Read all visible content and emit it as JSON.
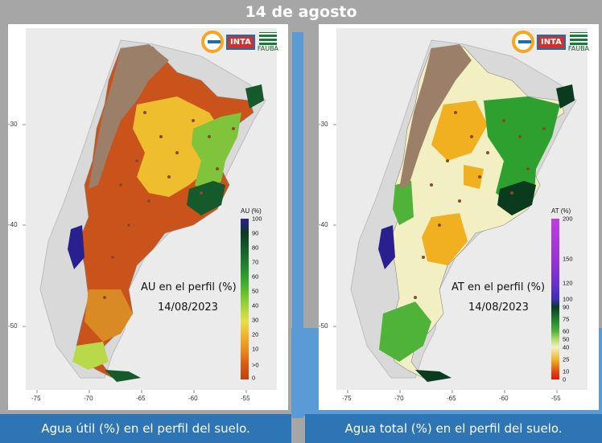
{
  "header": {
    "title": "14 de agosto"
  },
  "logos": {
    "inta": "INTA",
    "fauba": "FAUBA"
  },
  "left_panel": {
    "map_label": "AU en el perfil (%)",
    "date_label": "14/08/2023",
    "caption": "Agua útil (%) en el perfil del suelo.",
    "legend": {
      "title": "AU (%)",
      "ticks": [
        "100",
        "90",
        "80",
        "70",
        "60",
        "50",
        "40",
        "30",
        "20",
        "10",
        ">0",
        "0"
      ],
      "colors": [
        "#2a1f8f",
        "#0b3b1f",
        "#155a2b",
        "#1f7a2d",
        "#2ea02f",
        "#5bbf2c",
        "#a5d63a",
        "#e8e04a",
        "#f3b12b",
        "#e98a1c",
        "#d45a12",
        "#c2410c"
      ]
    }
  },
  "right_panel": {
    "map_label": "AT en el perfil (%)",
    "date_label": "14/08/2023",
    "caption": "Agua total (%) en el perfil del suelo.",
    "legend": {
      "title": "AT (%)",
      "ticks": [
        "200",
        "150",
        "120",
        "100",
        "90",
        "75",
        "60",
        "50",
        "40",
        "25",
        "10",
        "0"
      ],
      "colors": [
        "#c03de0",
        "#9b33d6",
        "#6b2fcf",
        "#3a2fb8",
        "#0b3b1f",
        "#1f7a2d",
        "#4fb33a",
        "#b5d96b",
        "#f2f0c2",
        "#f0b020",
        "#e24a15",
        "#d01d10"
      ]
    }
  },
  "axes": {
    "x_ticks": [
      "-75",
      "-70",
      "-65",
      "-60",
      "-55"
    ],
    "y_ticks": [
      "-30",
      "-40",
      "-50"
    ]
  }
}
